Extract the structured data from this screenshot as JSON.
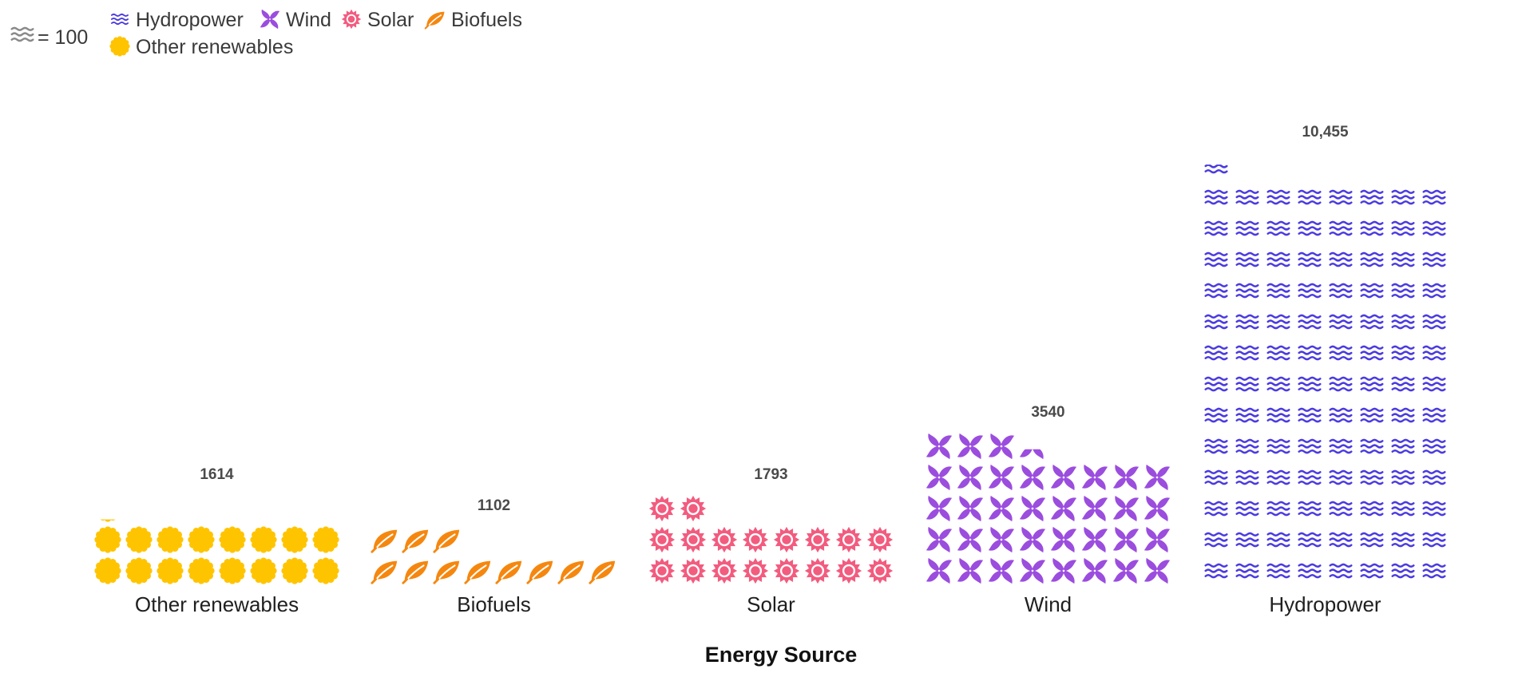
{
  "chart_data": {
    "type": "pictograph",
    "unit_label": "= 100",
    "unit_value": 100,
    "unit_icon": "wave-icon",
    "xlabel": "Energy Source",
    "legend_position": "top-left",
    "categories": [
      "Other renewables",
      "Biofuels",
      "Solar",
      "Wind",
      "Hydropower"
    ],
    "values": [
      1614,
      1102,
      1793,
      3540,
      10455
    ],
    "value_labels": [
      "1614",
      "1102",
      "1793",
      "3540",
      "10,455"
    ],
    "icons": [
      "sun-icon",
      "leaf-icon",
      "sun-ring-icon",
      "pinwheel-icon",
      "wave-icon"
    ],
    "colors": [
      "#ffc400",
      "#f5870f",
      "#f25c7f",
      "#9b4dde",
      "#4a3be0"
    ],
    "legend": [
      {
        "name": "Hydropower",
        "icon": "wave-icon",
        "color": "#4a3be0"
      },
      {
        "name": "Wind",
        "icon": "pinwheel-icon",
        "color": "#9b4dde"
      },
      {
        "name": "Solar",
        "icon": "sun-ring-icon",
        "color": "#f25c7f"
      },
      {
        "name": "Biofuels",
        "icon": "leaf-icon",
        "color": "#f5870f"
      },
      {
        "name": "Other renewables",
        "icon": "sun-icon",
        "color": "#ffc400"
      }
    ]
  }
}
